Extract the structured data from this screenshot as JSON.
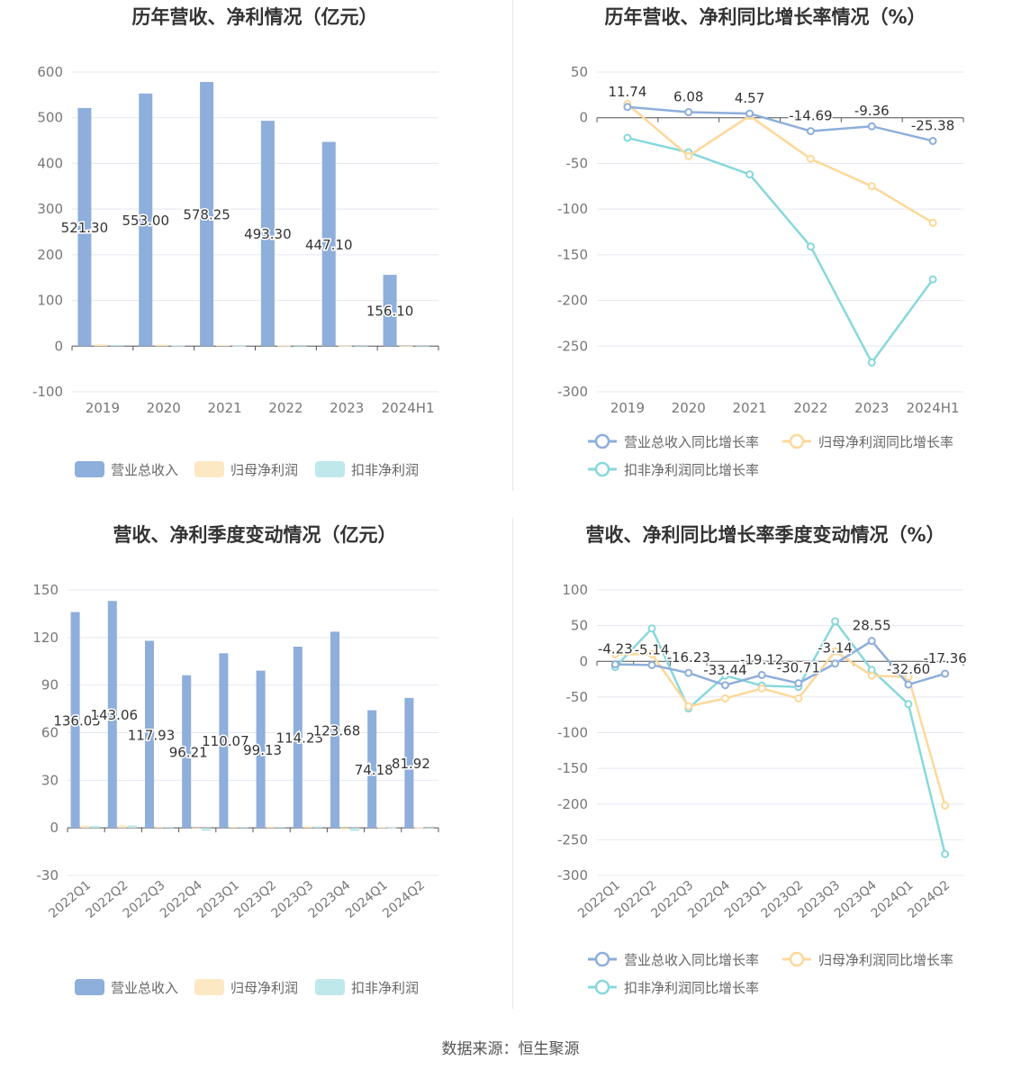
{
  "footer": {
    "source": "数据来源：恒生聚源"
  },
  "colors": {
    "revenue": "#8eaedb",
    "net_profit": "#fde8c4",
    "deducted": "#bfe8eb",
    "rev_growth": "#8eaedb",
    "np_growth": "#fdd89a",
    "ded_growth": "#88d8dc"
  },
  "legends": {
    "bar": [
      "营业总收入",
      "归母净利润",
      "扣非净利润"
    ],
    "line": [
      "营业总收入同比增长率",
      "归母净利润同比增长率",
      "扣非净利润同比增长率"
    ]
  },
  "chart_data": [
    {
      "id": "annual-amount",
      "type": "bar",
      "title": "历年营收、净利情况（亿元）",
      "categories": [
        "2019",
        "2020",
        "2021",
        "2022",
        "2023",
        "2024H1"
      ],
      "yticks": [
        -100,
        0,
        100,
        200,
        300,
        400,
        500,
        600
      ],
      "ylim": [
        -100,
        600
      ],
      "grid": true,
      "legend_position": "bottom",
      "series": [
        {
          "name": "营业总收入",
          "values": [
            521.3,
            553.0,
            578.25,
            493.3,
            447.1,
            156.1
          ],
          "labels": [
            "521.30",
            "553.00",
            "578.25",
            "493.30",
            "447.10",
            "156.10"
          ]
        },
        {
          "name": "归母净利润",
          "values": [
            4,
            3,
            2,
            1.5,
            1,
            0.3
          ]
        },
        {
          "name": "扣非净利润",
          "values": [
            2.5,
            1.5,
            1,
            -1,
            -2,
            -1.5
          ]
        }
      ]
    },
    {
      "id": "annual-growth",
      "type": "line",
      "title": "历年营收、净利同比增长率情况（%）",
      "categories": [
        "2019",
        "2020",
        "2021",
        "2022",
        "2023",
        "2024H1"
      ],
      "yticks": [
        -300,
        -250,
        -200,
        -150,
        -100,
        -50,
        0,
        50
      ],
      "ylim": [
        -300,
        50
      ],
      "grid": true,
      "legend_position": "bottom",
      "series": [
        {
          "name": "营业总收入同比增长率",
          "values": [
            11.74,
            6.08,
            4.57,
            -14.69,
            -9.36,
            -25.38
          ],
          "labels": [
            "11.74",
            "6.08",
            "4.57",
            "-14.69",
            "-9.36",
            "-25.38"
          ]
        },
        {
          "name": "归母净利润同比增长率",
          "values": [
            15,
            -42,
            2,
            -45,
            -75,
            -115
          ]
        },
        {
          "name": "扣非净利润同比增长率",
          "values": [
            -22,
            -38,
            -62,
            -141,
            -268,
            -177
          ]
        }
      ]
    },
    {
      "id": "quarterly-amount",
      "type": "bar",
      "title": "营收、净利季度变动情况（亿元）",
      "categories": [
        "2022Q1",
        "2022Q2",
        "2022Q3",
        "2022Q4",
        "2023Q1",
        "2023Q2",
        "2023Q3",
        "2023Q4",
        "2024Q1",
        "2024Q2"
      ],
      "yticks": [
        -30,
        0,
        30,
        60,
        90,
        120,
        150
      ],
      "ylim": [
        -30,
        150
      ],
      "grid": true,
      "legend_position": "bottom",
      "series": [
        {
          "name": "营业总收入",
          "values": [
            136.05,
            143.06,
            117.93,
            96.21,
            110.07,
            99.13,
            114.23,
            123.68,
            74.18,
            81.92
          ],
          "labels": [
            "136.05",
            "143.06",
            "117.93",
            "96.21",
            "110.07",
            "99.13",
            "114.23",
            "123.68",
            "74.18",
            "81.92"
          ]
        },
        {
          "name": "归母净利润",
          "values": [
            1.5,
            1.6,
            0.8,
            -0.5,
            0.7,
            0.9,
            1.0,
            -1.0,
            0.5,
            0.4
          ]
        },
        {
          "name": "扣非净利润",
          "values": [
            1.3,
            1.5,
            0.6,
            -1.8,
            0.6,
            0.7,
            0.9,
            -2.0,
            0.3,
            -0.5
          ]
        }
      ]
    },
    {
      "id": "quarterly-growth",
      "type": "line",
      "title": "营收、净利同比增长率季度变动情况（%）",
      "categories": [
        "2022Q1",
        "2022Q2",
        "2022Q3",
        "2022Q4",
        "2023Q1",
        "2023Q2",
        "2023Q3",
        "2023Q4",
        "2024Q1",
        "2024Q2"
      ],
      "yticks": [
        -300,
        -250,
        -200,
        -150,
        -100,
        -50,
        0,
        50,
        100
      ],
      "ylim": [
        -300,
        100
      ],
      "grid": true,
      "legend_position": "bottom",
      "series": [
        {
          "name": "营业总收入同比增长率",
          "values": [
            -4.23,
            -5.14,
            -16.23,
            -33.44,
            -19.12,
            -30.71,
            -3.14,
            28.55,
            -32.6,
            -17.36
          ],
          "labels": [
            "-4.23",
            "-5.14",
            "-16.23",
            "-33.44",
            "-19.12",
            "-30.71",
            "-3.14",
            "28.55",
            "-32.60",
            "-17.36"
          ]
        },
        {
          "name": "归母净利润同比增长率",
          "values": [
            10,
            10,
            -63,
            -52,
            -38,
            -52,
            14,
            -20,
            -22,
            -202
          ]
        },
        {
          "name": "扣非净利润同比增长率",
          "values": [
            -8,
            46,
            -66,
            -20,
            -34,
            -36,
            56,
            -12,
            -60,
            -270
          ]
        }
      ]
    }
  ]
}
